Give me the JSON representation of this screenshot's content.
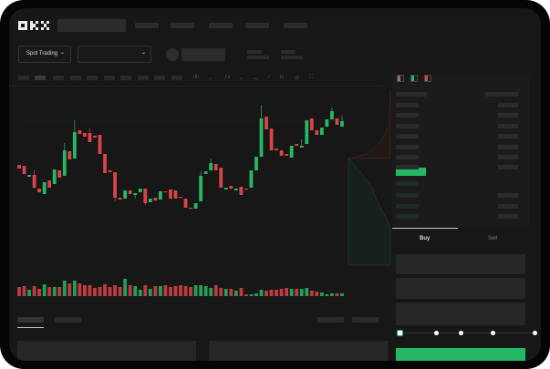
{
  "header": {
    "logo": "OKX",
    "nav_items": 5
  },
  "toolbar": {
    "market_select_label": "Spot Trading",
    "chevron_icon": "chevron-down-icon"
  },
  "chart_tools": [
    "candle-type-icon",
    "indicator-icon",
    "line-icon",
    "ruler-icon",
    "camera-icon",
    "settings-icon",
    "fullscreen-icon"
  ],
  "orderbook": {
    "view_icons": [
      "orderbook-both-icon",
      "orderbook-bids-icon",
      "orderbook-asks-icon"
    ]
  },
  "trade_panel": {
    "tabs": [
      {
        "label": "Buy",
        "active": true
      },
      {
        "label": "Sell",
        "active": false
      }
    ],
    "slider_percent": 0
  },
  "colors": {
    "up": "#26b764",
    "down": "#d9434a",
    "accent": "#22b865",
    "background": "#171717"
  },
  "chart_data": {
    "type": "candlestick",
    "ohlc": [
      [
        119,
        115,
        119,
        115
      ],
      [
        118,
        109,
        118,
        109
      ],
      [
        106,
        108,
        108,
        106
      ],
      [
        108,
        94,
        113,
        93
      ],
      [
        93,
        89,
        93,
        89
      ],
      [
        87,
        100,
        100,
        87
      ],
      [
        102,
        94,
        102,
        94
      ],
      [
        98,
        114,
        114,
        98
      ],
      [
        113,
        105,
        113,
        105
      ],
      [
        107,
        135,
        143,
        107
      ],
      [
        134,
        125,
        134,
        125
      ],
      [
        126,
        155,
        168,
        126
      ],
      [
        157,
        153,
        157,
        153
      ],
      [
        154,
        150,
        154,
        150
      ],
      [
        154,
        144,
        159,
        144
      ],
      [
        151,
        149,
        151,
        149
      ],
      [
        152,
        131,
        152,
        131
      ],
      [
        131,
        110,
        131,
        110
      ],
      [
        113,
        111,
        113,
        111
      ],
      [
        111,
        83,
        111,
        79
      ],
      [
        83,
        81,
        83,
        81
      ],
      [
        82,
        91,
        91,
        82
      ],
      [
        91,
        87,
        91,
        87
      ],
      [
        86,
        88,
        88,
        82
      ],
      [
        89,
        93,
        93,
        89
      ],
      [
        93,
        77,
        93,
        75
      ],
      [
        78,
        82,
        82,
        78
      ],
      [
        83,
        80,
        83,
        80
      ],
      [
        81,
        90,
        90,
        81
      ],
      [
        90,
        89,
        90,
        89
      ],
      [
        92,
        82,
        92,
        82
      ],
      [
        91,
        82,
        91,
        82
      ],
      [
        84,
        83,
        84,
        83
      ],
      [
        82,
        72,
        82,
        72
      ],
      [
        72,
        71,
        72,
        71
      ],
      [
        71,
        77,
        77,
        71
      ],
      [
        79,
        107,
        112,
        79
      ],
      [
        109,
        112,
        112,
        109
      ],
      [
        113,
        121,
        126,
        113
      ],
      [
        120,
        113,
        120,
        113
      ],
      [
        116,
        94,
        116,
        94
      ],
      [
        92,
        94,
        94,
        92
      ],
      [
        96,
        93,
        96,
        93
      ],
      [
        91,
        93,
        93,
        91
      ],
      [
        95,
        86,
        95,
        86
      ],
      [
        93,
        92,
        93,
        92
      ],
      [
        94,
        113,
        113,
        94
      ],
      [
        113,
        128,
        128,
        113
      ],
      [
        128,
        170,
        185,
        128
      ],
      [
        172,
        158,
        172,
        158
      ],
      [
        159,
        135,
        159,
        135
      ],
      [
        137,
        135,
        137,
        135
      ],
      [
        135,
        129,
        135,
        129
      ],
      [
        131,
        129,
        131,
        129
      ],
      [
        127,
        140,
        140,
        127
      ],
      [
        142,
        140,
        142,
        140
      ],
      [
        138,
        140,
        147,
        138
      ],
      [
        142,
        168,
        168,
        142
      ],
      [
        170,
        157,
        170,
        157
      ],
      [
        157,
        152,
        157,
        152
      ],
      [
        152,
        160,
        160,
        152
      ],
      [
        161,
        169,
        169,
        161
      ],
      [
        169,
        178,
        182,
        169
      ],
      [
        170,
        163,
        170,
        163
      ],
      [
        161,
        167,
        173,
        161
      ]
    ],
    "volume": [
      10,
      11,
      7,
      11,
      8,
      13,
      10,
      10,
      10,
      17,
      14,
      17,
      14,
      12,
      12,
      9,
      10,
      13,
      10,
      12,
      10,
      19,
      12,
      11,
      7,
      12,
      8,
      11,
      11,
      12,
      10,
      11,
      12,
      11,
      10,
      12,
      12,
      11,
      9,
      12,
      9,
      8,
      8,
      6,
      9,
      2,
      2,
      3,
      7,
      6,
      7,
      7,
      8,
      9,
      8,
      8,
      8,
      9,
      6,
      5,
      4,
      2,
      3,
      3,
      3
    ]
  }
}
